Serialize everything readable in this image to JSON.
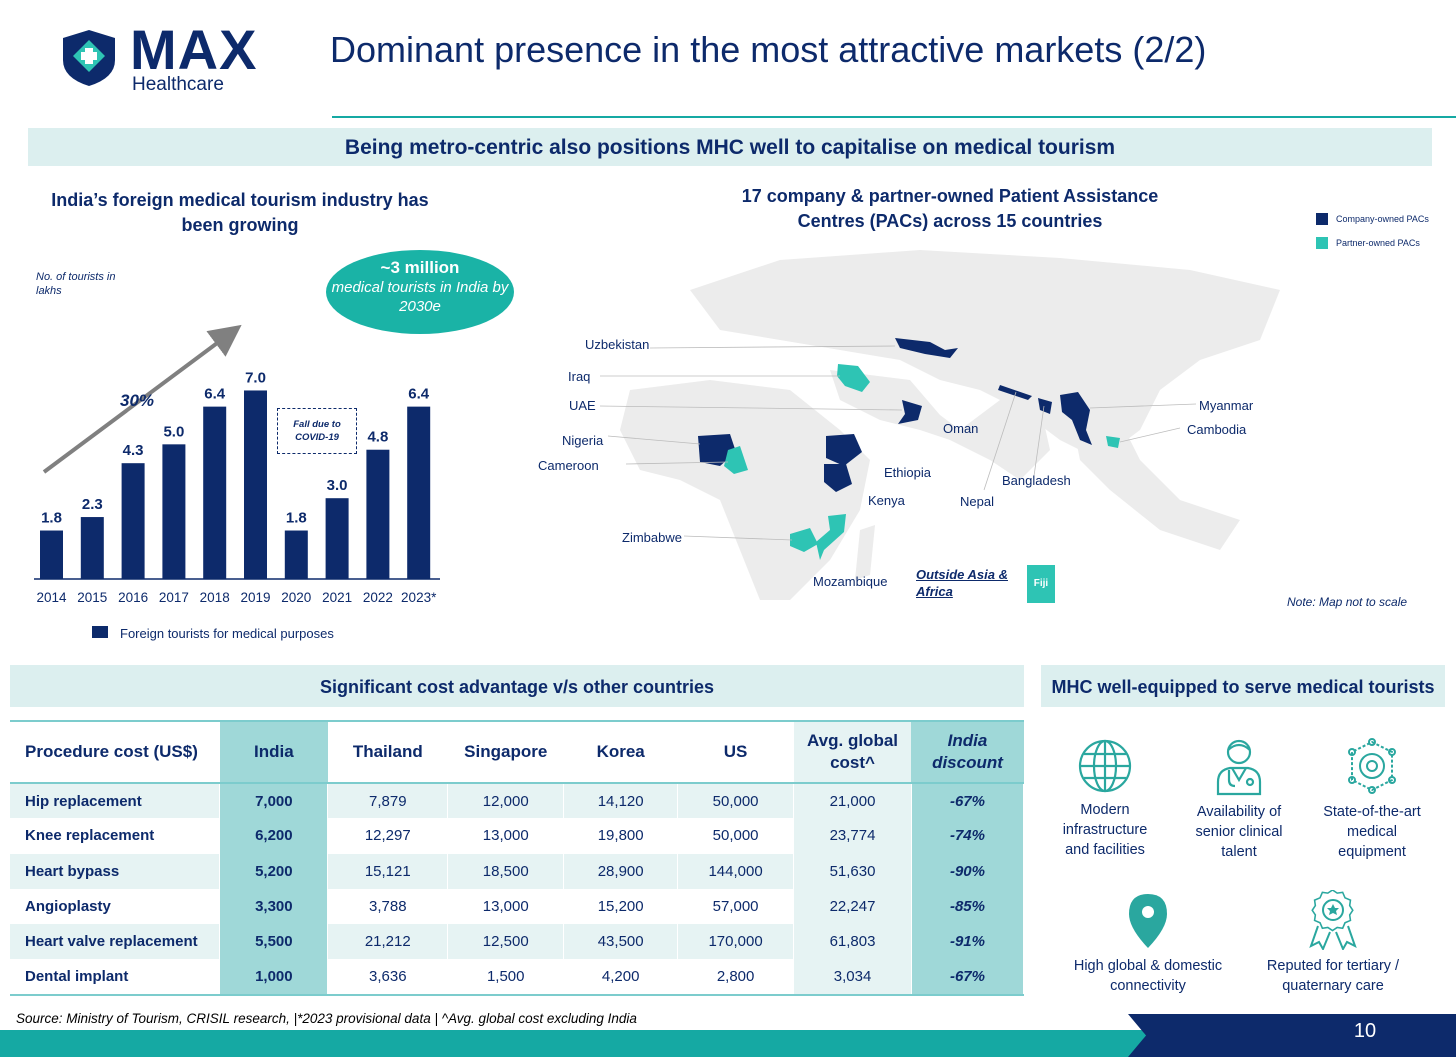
{
  "header": {
    "logo_text": "MAX",
    "logo_sub": "Healthcare",
    "title": "Dominant presence in the most attractive markets (2/2)"
  },
  "banner_top": "Being metro-centric also positions MHC well to capitalise on medical tourism",
  "tourism_chart": {
    "title": "India’s foreign medical tourism industry has been growing",
    "unit_label": "No. of tourists in lakhs",
    "callout_big": "~3 million",
    "callout_small": "medical tourists in India by 2030e",
    "cagr_label": "30%",
    "covid_note": "Fall due to COVID-19",
    "legend_label": "Foreign tourists for medical purposes",
    "colors": {
      "bar": "#0d2a6b",
      "arrow": "#808080"
    }
  },
  "chart_data": {
    "type": "bar",
    "categories": [
      "2014",
      "2015",
      "2016",
      "2017",
      "2018",
      "2019",
      "2020",
      "2021",
      "2022",
      "2023*"
    ],
    "series": [
      {
        "name": "Foreign tourists for medical purposes",
        "values": [
          1.8,
          2.3,
          4.3,
          5.0,
          6.4,
          7.0,
          1.8,
          3.0,
          4.8,
          6.4
        ]
      }
    ],
    "ylabel": "No. of tourists in lakhs",
    "ylim": [
      0,
      7.5
    ],
    "grid": false,
    "legend": "bottom-left"
  },
  "map": {
    "title": "17 company & partner-owned Patient Assistance Centres (PACs) across 15 countries",
    "legend_company": "Company-owned PACs",
    "legend_partner": "Partner-owned PACs",
    "colors": {
      "company": "#0d2a6b",
      "partner": "#2ec4b4",
      "land": "#ececec"
    },
    "labels": {
      "uzbekistan": "Uzbekistan",
      "iraq": "Iraq",
      "uae": "UAE",
      "nigeria": "Nigeria",
      "cameroon": "Cameroon",
      "zimbabwe": "Zimbabwe",
      "mozambique": "Mozambique",
      "ethiopia": "Ethiopia",
      "kenya": "Kenya",
      "oman": "Oman",
      "nepal": "Nepal",
      "bangladesh": "Bangladesh",
      "myanmar": "Myanmar",
      "cambodia": "Cambodia"
    },
    "outside": "Outside Asia & Africa",
    "fiji": "Fiji",
    "note": "Note: Map not to scale"
  },
  "cost_table": {
    "banner": "Significant cost advantage v/s other countries",
    "headers": [
      "Procedure cost (US$)",
      "India",
      "Thailand",
      "Singapore",
      "Korea",
      "US",
      "Avg. global cost^",
      "India discount"
    ],
    "rows": [
      [
        "Hip replacement",
        "7,000",
        "7,879",
        "12,000",
        "14,120",
        "50,000",
        "21,000",
        "-67%"
      ],
      [
        "Knee replacement",
        "6,200",
        "12,297",
        "13,000",
        "19,800",
        "50,000",
        "23,774",
        "-74%"
      ],
      [
        "Heart bypass",
        "5,200",
        "15,121",
        "18,500",
        "28,900",
        "144,000",
        "51,630",
        "-90%"
      ],
      [
        "Angioplasty",
        "3,300",
        "3,788",
        "13,000",
        "15,200",
        "57,000",
        "22,247",
        "-85%"
      ],
      [
        "Heart valve replacement",
        "5,500",
        "21,212",
        "12,500",
        "43,500",
        "170,000",
        "61,803",
        "-91%"
      ],
      [
        "Dental implant",
        "1,000",
        "3,636",
        "1,500",
        "4,200",
        "2,800",
        "3,034",
        "-67%"
      ]
    ]
  },
  "equipped": {
    "banner": "MHC well-equipped to serve medical tourists",
    "items": [
      {
        "label": "Modern infrastructure and facilities",
        "icon": "globe-icon"
      },
      {
        "label": "Availability of senior clinical talent",
        "icon": "doctor-icon"
      },
      {
        "label": "State-of-the-art medical equipment",
        "icon": "network-icon"
      },
      {
        "label": "High global & domestic connectivity",
        "icon": "location-pin-icon"
      },
      {
        "label": "Reputed for tertiary / quaternary care",
        "icon": "award-badge-icon"
      }
    ],
    "colors": {
      "icon": "#2aa79f"
    }
  },
  "footer": {
    "source": "Source: Ministry of Tourism, CRISIL research, |*2023 provisional data | ^Avg. global cost excluding India",
    "page_number": "10"
  }
}
